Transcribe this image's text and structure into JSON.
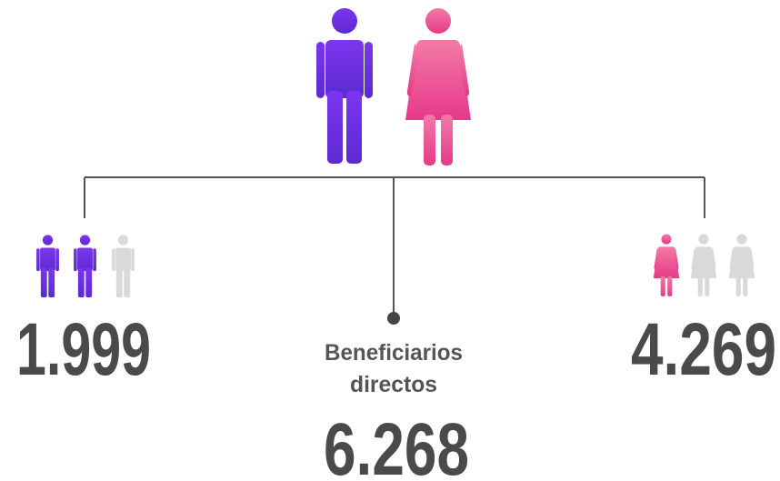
{
  "men": {
    "count": "1.999"
  },
  "women": {
    "count": "4.269"
  },
  "total": {
    "label_lines": [
      "Beneficiarios",
      "directos"
    ],
    "count": "6.268"
  }
}
